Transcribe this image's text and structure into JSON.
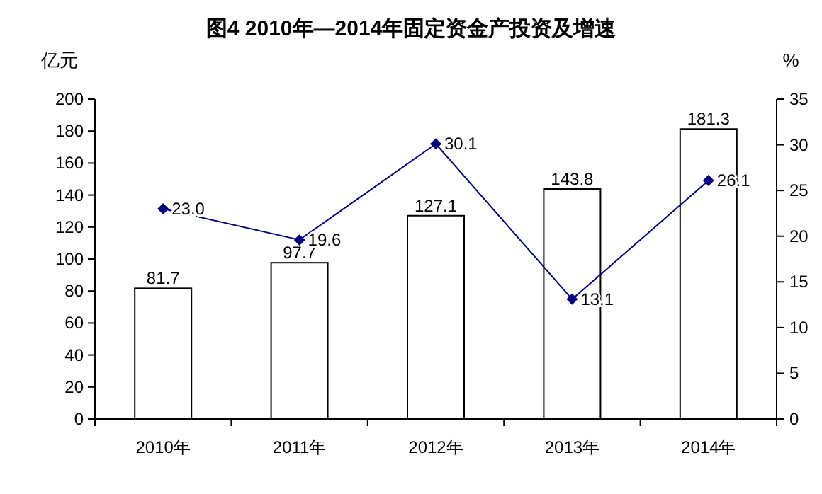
{
  "chart_data": {
    "type": "bar",
    "title": "图4  2010年—2014年固定资金产投资及增速",
    "ylabel": "亿元",
    "y2label": "%",
    "categories": [
      "2010年",
      "2011年",
      "2012年",
      "2013年",
      "2014年"
    ],
    "series": [
      {
        "color": "#ffffff",
        "values": [
          81.7,
          97.7,
          127.1,
          143.8,
          181.3
        ],
        "value_labels": [
          "81.7",
          "97.7",
          "127.1",
          "143.8",
          "181.3"
        ]
      },
      {
        "type": "line",
        "axis": "y2",
        "color": "#000080",
        "marker": "diamond",
        "values": [
          23.0,
          19.6,
          30.1,
          13.1,
          26.1
        ],
        "value_labels": [
          "23.0",
          "19.6",
          "30.1",
          "13.1",
          "26.1"
        ]
      }
    ],
    "ylim": [
      0,
      200
    ],
    "yticks": [
      0,
      20,
      40,
      60,
      80,
      100,
      120,
      140,
      160,
      180,
      200
    ],
    "y2lim": [
      0,
      35
    ],
    "y2ticks": [
      0,
      5,
      10,
      15,
      20,
      25,
      30,
      35
    ],
    "grid": false
  }
}
